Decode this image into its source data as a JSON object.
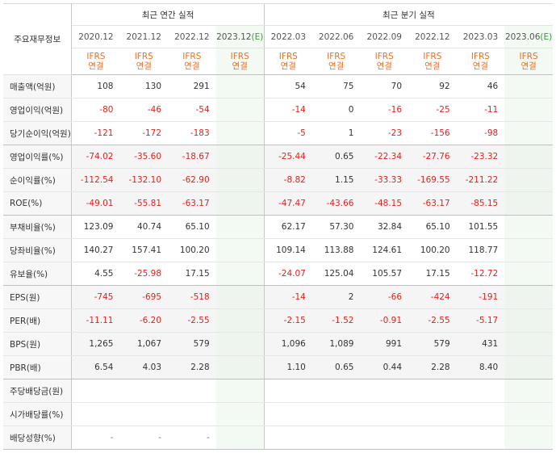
{
  "header": {
    "corner_label": "주요재무정보",
    "annual_title": "최근 연간 실적",
    "quarter_title": "최근 분기 실적",
    "annual_periods": [
      "2020.12",
      "2021.12",
      "2022.12",
      "2023.12"
    ],
    "annual_estimate_suffix": "(E)",
    "quarter_periods": [
      "2022.03",
      "2022.06",
      "2022.09",
      "2022.12",
      "2023.03",
      "2023.06"
    ],
    "quarter_estimate_suffix": "(E)",
    "ifrs": "IFRS",
    "consol": "연결"
  },
  "rows": [
    {
      "label": "매출액(억원)",
      "annual": [
        "108",
        "130",
        "291",
        ""
      ],
      "quarter": [
        "54",
        "75",
        "70",
        "92",
        "46",
        ""
      ]
    },
    {
      "label": "영업이익(억원)",
      "annual": [
        "-80",
        "-46",
        "-54",
        ""
      ],
      "quarter": [
        "-14",
        "0",
        "-16",
        "-25",
        "-11",
        ""
      ]
    },
    {
      "label": "당기순이익(억원)",
      "annual": [
        "-121",
        "-172",
        "-183",
        ""
      ],
      "quarter": [
        "-5",
        "1",
        "-23",
        "-156",
        "-98",
        ""
      ]
    },
    {
      "label": "영업이익률(%)",
      "annual": [
        "-74.02",
        "-35.60",
        "-18.67",
        ""
      ],
      "quarter": [
        "-25.44",
        "0.65",
        "-22.34",
        "-27.76",
        "-23.32",
        ""
      ]
    },
    {
      "label": "순이익률(%)",
      "annual": [
        "-112.54",
        "-132.10",
        "-62.90",
        ""
      ],
      "quarter": [
        "-8.82",
        "1.15",
        "-33.33",
        "-169.55",
        "-211.22",
        ""
      ]
    },
    {
      "label": "ROE(%)",
      "annual": [
        "-49.01",
        "-55.81",
        "-63.17",
        ""
      ],
      "quarter": [
        "-47.47",
        "-43.66",
        "-48.15",
        "-63.17",
        "-85.15",
        ""
      ]
    },
    {
      "label": "부채비율(%)",
      "annual": [
        "123.09",
        "40.74",
        "65.10",
        ""
      ],
      "quarter": [
        "62.17",
        "57.30",
        "32.84",
        "65.10",
        "101.55",
        ""
      ]
    },
    {
      "label": "당좌비율(%)",
      "annual": [
        "140.27",
        "157.41",
        "100.20",
        ""
      ],
      "quarter": [
        "109.14",
        "113.88",
        "124.61",
        "100.20",
        "118.77",
        ""
      ]
    },
    {
      "label": "유보율(%)",
      "annual": [
        "4.55",
        "-25.98",
        "17.15",
        ""
      ],
      "quarter": [
        "-24.07",
        "125.04",
        "105.57",
        "17.15",
        "-12.72",
        ""
      ]
    },
    {
      "label": "EPS(원)",
      "annual": [
        "-745",
        "-695",
        "-518",
        ""
      ],
      "quarter": [
        "-14",
        "2",
        "-66",
        "-424",
        "-191",
        ""
      ]
    },
    {
      "label": "PER(배)",
      "annual": [
        "-11.11",
        "-6.20",
        "-2.55",
        ""
      ],
      "quarter": [
        "-2.15",
        "-1.52",
        "-0.91",
        "-2.55",
        "-5.17",
        ""
      ]
    },
    {
      "label": "BPS(원)",
      "annual": [
        "1,265",
        "1,067",
        "579",
        ""
      ],
      "quarter": [
        "1,096",
        "1,089",
        "991",
        "579",
        "431",
        ""
      ]
    },
    {
      "label": "PBR(배)",
      "annual": [
        "6.54",
        "4.03",
        "2.28",
        ""
      ],
      "quarter": [
        "1.10",
        "0.65",
        "0.44",
        "2.28",
        "8.40",
        ""
      ]
    },
    {
      "label": "주당배당금(원)",
      "annual": [
        "",
        "",
        "",
        ""
      ],
      "quarter": [
        "",
        "",
        "",
        "",
        "",
        ""
      ]
    },
    {
      "label": "시가배당률(%)",
      "annual": [
        "",
        "",
        "",
        ""
      ],
      "quarter": [
        "",
        "",
        "",
        "",
        "",
        ""
      ]
    },
    {
      "label": "배당성향(%)",
      "annual": [
        "-",
        "-",
        "-",
        ""
      ],
      "quarter": [
        "",
        "",
        "",
        "",
        "",
        ""
      ]
    }
  ],
  "colors": {
    "negative": "#e3221b",
    "ifrs_orange": "#f26d21",
    "estimate_green": "#3a9a3a",
    "estimate_bg": "#f3f9f3"
  }
}
